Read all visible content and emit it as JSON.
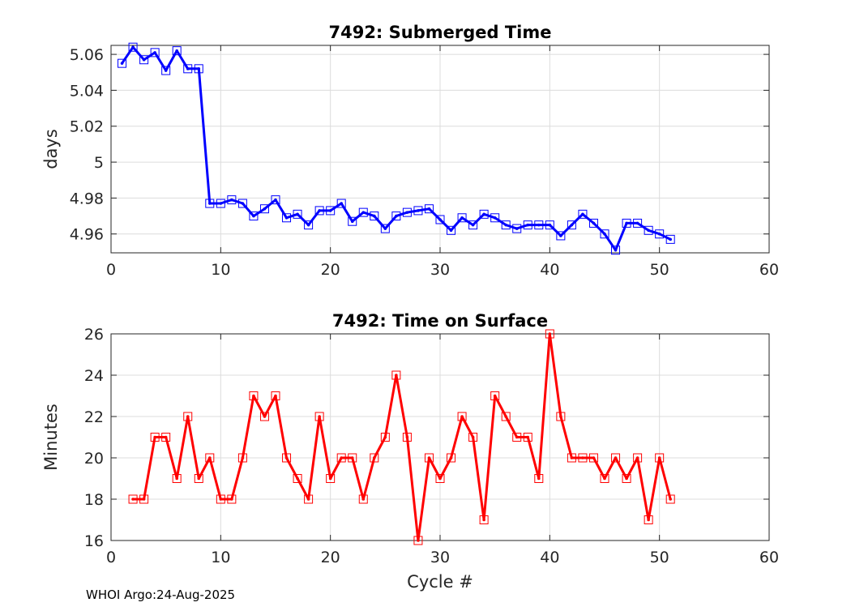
{
  "colors": {
    "top_series": "#0000ff",
    "bottom_series": "#ff0000"
  },
  "footer": "WHOI Argo:24-Aug-2025",
  "chart_data": [
    {
      "type": "line",
      "title": "7492: Submerged Time",
      "xlabel": "",
      "ylabel": "days",
      "xlim": [
        0,
        60
      ],
      "ylim": [
        4.9495,
        5.065
      ],
      "xticks": [
        0,
        10,
        20,
        30,
        40,
        50,
        60
      ],
      "yticks": [
        4.96,
        4.98,
        5,
        5.02,
        5.04,
        5.06
      ],
      "ytick_labels": [
        "4.96",
        "4.98",
        "5",
        "5.02",
        "5.04",
        "5.06"
      ],
      "grid": true,
      "marker": "square",
      "series": [
        {
          "name": "Submerged Time",
          "color": "#0000ff",
          "x": [
            1,
            2,
            3,
            4,
            5,
            6,
            7,
            8,
            9,
            10,
            11,
            12,
            13,
            14,
            15,
            16,
            17,
            18,
            19,
            20,
            21,
            22,
            23,
            24,
            25,
            26,
            27,
            28,
            29,
            30,
            31,
            32,
            33,
            34,
            35,
            36,
            37,
            38,
            39,
            40,
            41,
            42,
            43,
            44,
            45,
            46,
            47,
            48,
            49,
            50,
            51
          ],
          "y": [
            5.055,
            5.064,
            5.057,
            5.061,
            5.051,
            5.062,
            5.052,
            5.052,
            4.977,
            4.977,
            4.979,
            4.977,
            4.97,
            4.974,
            4.979,
            4.969,
            4.971,
            4.965,
            4.973,
            4.973,
            4.977,
            4.967,
            4.972,
            4.97,
            4.963,
            4.97,
            4.972,
            4.973,
            4.974,
            4.968,
            4.962,
            4.969,
            4.965,
            4.971,
            4.969,
            4.965,
            4.963,
            4.965,
            4.965,
            4.965,
            4.959,
            4.965,
            4.971,
            4.966,
            4.96,
            4.951,
            4.966,
            4.966,
            4.962,
            4.96,
            4.957
          ]
        }
      ]
    },
    {
      "type": "line",
      "title": "7492: Time on Surface",
      "xlabel": "Cycle #",
      "ylabel": "Minutes",
      "xlim": [
        0,
        60
      ],
      "ylim": [
        16,
        26
      ],
      "xticks": [
        0,
        10,
        20,
        30,
        40,
        50,
        60
      ],
      "yticks": [
        16,
        18,
        20,
        22,
        24,
        26
      ],
      "ytick_labels": [
        "16",
        "18",
        "20",
        "22",
        "24",
        "26"
      ],
      "grid": true,
      "marker": "square",
      "series": [
        {
          "name": "Time on Surface",
          "color": "#ff0000",
          "x": [
            2,
            3,
            4,
            5,
            6,
            7,
            8,
            9,
            10,
            11,
            12,
            13,
            14,
            15,
            16,
            17,
            18,
            19,
            20,
            21,
            22,
            23,
            24,
            25,
            26,
            27,
            28,
            29,
            30,
            31,
            32,
            33,
            34,
            35,
            36,
            37,
            38,
            39,
            40,
            41,
            42,
            43,
            44,
            45,
            46,
            47,
            48,
            49,
            50,
            51
          ],
          "y": [
            18,
            18,
            21,
            21,
            19,
            22,
            19,
            20,
            18,
            18,
            20,
            23,
            22,
            23,
            20,
            19,
            18,
            22,
            19,
            20,
            20,
            18,
            20,
            21,
            24,
            21,
            16,
            20,
            19,
            20,
            22,
            21,
            17,
            23,
            22,
            21,
            21,
            19,
            26,
            22,
            20,
            20,
            20,
            19,
            20,
            19,
            20,
            17,
            20,
            18
          ]
        }
      ]
    }
  ]
}
